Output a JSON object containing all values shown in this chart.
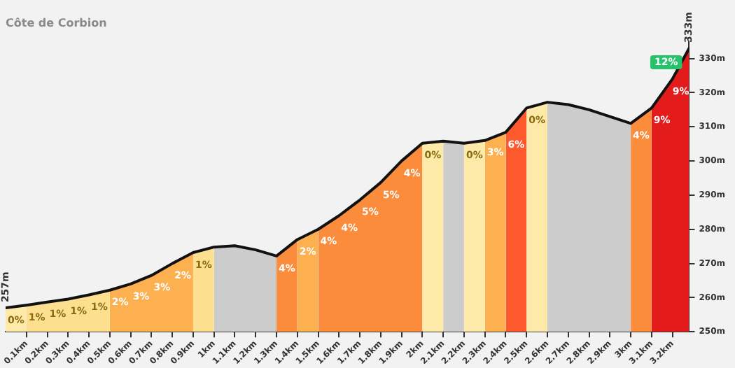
{
  "chart_data": {
    "type": "area",
    "title": "Côte de Corbion",
    "x": [
      0,
      0.1,
      0.2,
      0.3,
      0.4,
      0.5,
      0.6,
      0.7,
      0.8,
      0.9,
      1.0,
      1.1,
      1.2,
      1.3,
      1.4,
      1.5,
      1.6,
      1.7,
      1.8,
      1.9,
      2.0,
      2.1,
      2.2,
      2.3,
      2.4,
      2.5,
      2.6,
      2.7,
      2.8,
      2.9,
      3.0,
      3.1,
      3.2,
      3.28
    ],
    "series": [
      {
        "type": "line",
        "color": "#111111",
        "values": [
          257,
          257.8,
          258.7,
          259.6,
          260.8,
          262.2,
          264,
          266.5,
          270,
          273.2,
          274.8,
          275.2,
          274,
          272.2,
          277,
          280,
          284,
          288.6,
          293.7,
          300,
          305.2,
          305.8,
          305.2,
          306,
          308.4,
          315.5,
          317.2,
          316.5,
          315,
          313,
          311,
          315.5,
          324,
          333
        ]
      },
      {
        "color": "#fdeaa8",
        "x": [
          0,
          0.1
        ],
        "values": [
          257,
          257.8
        ]
      },
      {
        "color": "#fde08f",
        "x": [
          0.1,
          0.2,
          0.3,
          0.4,
          0.5
        ],
        "values": [
          257.8,
          258.7,
          259.6,
          260.8,
          262.2
        ]
      },
      {
        "color": "#fdb04f",
        "x": [
          0.5,
          0.6,
          0.7,
          0.8,
          0.9
        ],
        "values": [
          262.2,
          264,
          266.5,
          270,
          273.2
        ]
      },
      {
        "color": "#fde08f",
        "x": [
          0.9,
          1.0
        ],
        "values": [
          273.2,
          274.8
        ]
      },
      {
        "color": "#cccccc",
        "x": [
          1.0,
          1.1,
          1.2,
          1.3
        ],
        "values": [
          274.8,
          275.2,
          274,
          272.2
        ]
      },
      {
        "color": "#fb8c3c",
        "x": [
          1.3,
          1.4
        ],
        "values": [
          272.2,
          277
        ]
      },
      {
        "color": "#fdb04f",
        "x": [
          1.4,
          1.5
        ],
        "values": [
          277,
          280
        ]
      },
      {
        "color": "#fb8c3c",
        "x": [
          1.5,
          1.6,
          1.7,
          1.8,
          1.9,
          2.0
        ],
        "values": [
          280,
          284,
          288.6,
          293.7,
          300,
          305.2
        ]
      },
      {
        "color": "#fdeaa8",
        "x": [
          2.0,
          2.1
        ],
        "values": [
          305.2,
          305.8
        ]
      },
      {
        "color": "#cccccc",
        "x": [
          2.1,
          2.2
        ],
        "values": [
          305.8,
          305.2
        ]
      },
      {
        "color": "#fdeaa8",
        "x": [
          2.2,
          2.3
        ],
        "values": [
          305.2,
          306
        ]
      },
      {
        "color": "#fdb04f",
        "x": [
          2.3,
          2.4
        ],
        "values": [
          306,
          308.4
        ]
      },
      {
        "color": "#fc5a2c",
        "x": [
          2.4,
          2.5
        ],
        "values": [
          308.4,
          315.5
        ]
      },
      {
        "color": "#fdeaa8",
        "x": [
          2.5,
          2.6
        ],
        "values": [
          315.5,
          317.2
        ]
      },
      {
        "color": "#cccccc",
        "x": [
          2.6,
          2.7,
          2.8,
          2.9,
          3.0
        ],
        "values": [
          317.2,
          316.5,
          315,
          313,
          311
        ]
      },
      {
        "color": "#fb8c3c",
        "x": [
          3.0,
          3.1
        ],
        "values": [
          311,
          315.5
        ]
      },
      {
        "color": "#e31b1b",
        "x": [
          3.1,
          3.2,
          3.28
        ],
        "values": [
          315.5,
          324,
          333
        ]
      }
    ],
    "xlim": [
      0,
      3.28
    ],
    "xticks": [
      {
        "value": 0.1,
        "label": "0.1km"
      },
      {
        "value": 0.2,
        "label": "0.2km"
      },
      {
        "value": 0.3,
        "label": "0.3km"
      },
      {
        "value": 0.4,
        "label": "0.4km"
      },
      {
        "value": 0.5,
        "label": "0.5km"
      },
      {
        "value": 0.6,
        "label": "0.6km"
      },
      {
        "value": 0.7,
        "label": "0.7km"
      },
      {
        "value": 0.8,
        "label": "0.8km"
      },
      {
        "value": 0.9,
        "label": "0.9km"
      },
      {
        "value": 1,
        "label": "1km"
      },
      {
        "value": 1.1,
        "label": "1.1km"
      },
      {
        "value": 1.2,
        "label": "1.2km"
      },
      {
        "value": 1.3,
        "label": "1.3km"
      },
      {
        "value": 1.4,
        "label": "1.4km"
      },
      {
        "value": 1.5,
        "label": "1.5km"
      },
      {
        "value": 1.6,
        "label": "1.6km"
      },
      {
        "value": 1.7,
        "label": "1.7km"
      },
      {
        "value": 1.8,
        "label": "1.8km"
      },
      {
        "value": 1.9,
        "label": "1.9km"
      },
      {
        "value": 2,
        "label": "2km"
      },
      {
        "value": 2.1,
        "label": "2.1km"
      },
      {
        "value": 2.2,
        "label": "2.2km"
      },
      {
        "value": 2.3,
        "label": "2.3km"
      },
      {
        "value": 2.4,
        "label": "2.4km"
      },
      {
        "value": 2.5,
        "label": "2.5km"
      },
      {
        "value": 2.6,
        "label": "2.6km"
      },
      {
        "value": 2.7,
        "label": "2.7km"
      },
      {
        "value": 2.8,
        "label": "2.8km"
      },
      {
        "value": 2.9,
        "label": "2.9km"
      },
      {
        "value": 3,
        "label": "3km"
      },
      {
        "value": 3.1,
        "label": "3.1km"
      },
      {
        "value": 3.2,
        "label": "3.2km"
      }
    ],
    "ylim": [
      250,
      335
    ],
    "yticks": [
      {
        "value": 250,
        "label": "250m"
      },
      {
        "value": 260,
        "label": "260m"
      },
      {
        "value": 270,
        "label": "270m"
      },
      {
        "value": 280,
        "label": "280m"
      },
      {
        "value": 290,
        "label": "290m"
      },
      {
        "value": 300,
        "label": "300m"
      },
      {
        "value": 310,
        "label": "310m"
      },
      {
        "value": 320,
        "label": "320m"
      },
      {
        "value": 330,
        "label": "330m"
      }
    ],
    "annotations": [
      "257m",
      "333m",
      {
        "text": "0%",
        "x": 0,
        "y": 257
      },
      {
        "text": "1%",
        "x": 0.1,
        "y": 257.8
      },
      {
        "text": "1%",
        "x": 0.2,
        "y": 258.7
      },
      {
        "text": "1%",
        "x": 0.3,
        "y": 259.6
      },
      {
        "text": "1%",
        "x": 0.4,
        "y": 260.8
      },
      {
        "text": "2%",
        "x": 0.5,
        "y": 262.2
      },
      {
        "text": "3%",
        "x": 0.6,
        "y": 264
      },
      {
        "text": "3%",
        "x": 0.7,
        "y": 266.5
      },
      {
        "text": "2%",
        "x": 0.8,
        "y": 270
      },
      {
        "text": "1%",
        "x": 0.9,
        "y": 273.2
      },
      {
        "text": "4%",
        "x": 1.3,
        "y": 272.2
      },
      {
        "text": "2%",
        "x": 1.4,
        "y": 277
      },
      {
        "text": "4%",
        "x": 1.5,
        "y": 280
      },
      {
        "text": "4%",
        "x": 1.6,
        "y": 284
      },
      {
        "text": "5%",
        "x": 1.7,
        "y": 288.6
      },
      {
        "text": "5%",
        "x": 1.8,
        "y": 293.7
      },
      {
        "text": "4%",
        "x": 1.9,
        "y": 300
      },
      {
        "text": "0%",
        "x": 2.0,
        "y": 305.2
      },
      {
        "text": "0%",
        "x": 2.2,
        "y": 305.2
      },
      {
        "text": "3%",
        "x": 2.3,
        "y": 306
      },
      {
        "text": "6%",
        "x": 2.4,
        "y": 308.4
      },
      {
        "text": "0%",
        "x": 2.5,
        "y": 315.5
      },
      {
        "text": "4%",
        "x": 3.0,
        "y": 311
      },
      {
        "text": "9%",
        "x": 3.1,
        "y": 315.5
      },
      {
        "text": "9%",
        "x": 3.2,
        "y": 324
      },
      {
        "text": "12%",
        "x": 3.28,
        "y": 333
      }
    ],
    "grid": false,
    "legend": false
  }
}
